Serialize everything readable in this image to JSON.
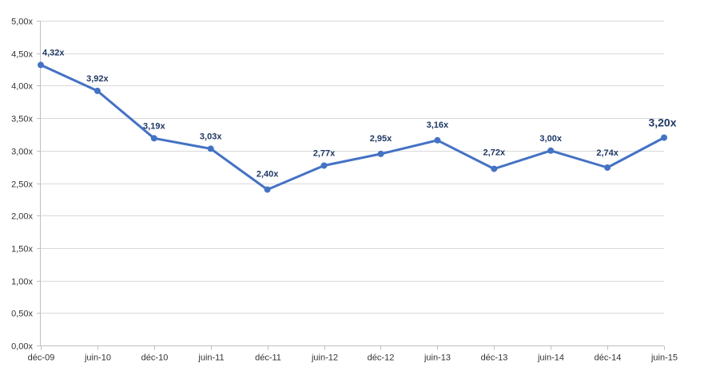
{
  "chart_data": {
    "type": "line",
    "title": "",
    "xlabel": "",
    "ylabel": "",
    "categories": [
      "déc-09",
      "juin-10",
      "déc-10",
      "juin-11",
      "déc-11",
      "juin-12",
      "déc-12",
      "juin-13",
      "déc-13",
      "juin-14",
      "déc-14",
      "juin-15"
    ],
    "series": [
      {
        "values": [
          4.32,
          3.92,
          3.19,
          3.03,
          2.4,
          2.77,
          2.95,
          3.16,
          2.72,
          3.0,
          2.74,
          3.2
        ],
        "labels": [
          "4,32x",
          "3,92x",
          "3,19x",
          "3,03x",
          "2,40x",
          "2,77x",
          "2,95x",
          "3,16x",
          "2,72x",
          "3,00x",
          "2,74x",
          "3,20x"
        ],
        "color": "#4472c4"
      }
    ],
    "ylim": [
      0,
      5
    ],
    "yticks": [
      0,
      0.5,
      1,
      1.5,
      2,
      2.5,
      3,
      3.5,
      4,
      4.5,
      5
    ],
    "ytick_labels": [
      "0,00x",
      "0,50x",
      "1,00x",
      "1,50x",
      "2,00x",
      "2,50x",
      "3,00x",
      "3,50x",
      "4,00x",
      "4,50x",
      "5,00x"
    ],
    "grid": true,
    "legend": "none",
    "emphasized_point": "last",
    "colors": {
      "line": "#4472c4",
      "grid": "#d9d9d9",
      "axis": "#bfbfbf",
      "label": "#1f3864",
      "tick": "#333333"
    }
  }
}
